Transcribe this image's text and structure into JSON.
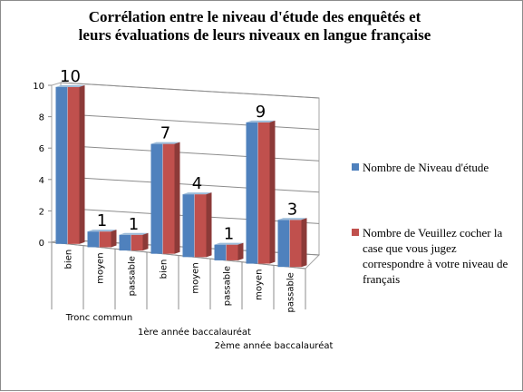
{
  "chart_data": {
    "type": "bar",
    "title": [
      "Corrélation entre  le niveau d'étude des enquêtés et",
      "leurs évaluations de leurs niveaux en langue française"
    ],
    "categories": [
      "bien",
      "moyen",
      "passable",
      "bien",
      "moyen",
      "passable",
      "moyen",
      "passable"
    ],
    "groups": [
      {
        "label": "Tronc commun",
        "count": 3
      },
      {
        "label": "1ère année baccalauréat",
        "count": 3
      },
      {
        "label": "2ème année baccalauréat",
        "count": 2
      }
    ],
    "data_labels": [
      "10",
      "1",
      "1",
      "7",
      "4",
      "1",
      "9",
      "3"
    ],
    "series": [
      {
        "name": "Nombre de Niveau d'étude",
        "values": [
          10,
          1,
          1,
          7,
          4,
          1,
          9,
          3
        ],
        "color": "#4f81bd"
      },
      {
        "name": "Nombre de Veuillez cocher la case que vous jugez correspondre à votre niveau de français",
        "values": [
          10,
          1,
          1,
          7,
          4,
          1,
          9,
          3
        ],
        "color": "#c0504d"
      }
    ],
    "ylim": [
      0,
      10
    ],
    "yticks": [
      "0",
      "2",
      "4",
      "6",
      "8",
      "10"
    ],
    "grid": true,
    "legend_position": "right",
    "style": "3d-clustered-column"
  }
}
